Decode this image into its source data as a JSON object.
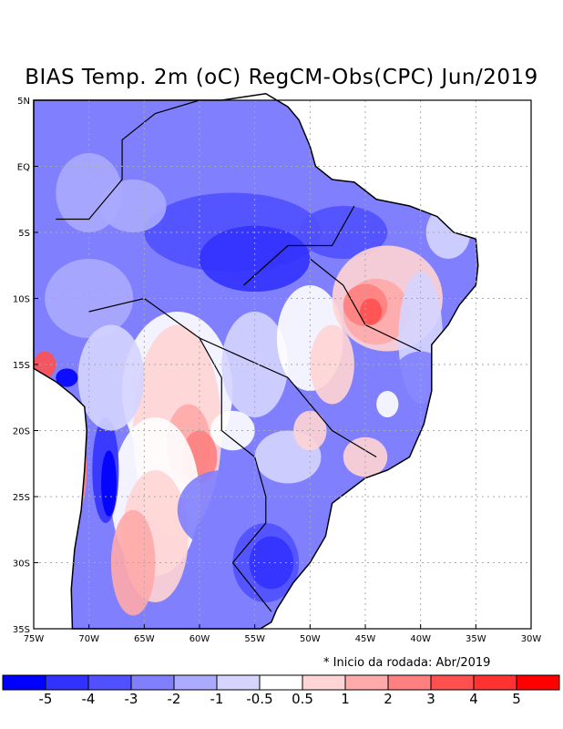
{
  "title": "BIAS Temp. 2m (oC) RegCM-Obs(CPC) Jun/2019",
  "lat_labels": [
    "5N",
    "EQ",
    "5S",
    "10S",
    "15S",
    "20S",
    "25S",
    "30S",
    "35S"
  ],
  "lon_labels": [
    "75W",
    "70W",
    "65W",
    "60W",
    "55W",
    "50W",
    "45W",
    "40W",
    "35W",
    "30W"
  ],
  "note": "* Inicio da rodada: Abr/2019",
  "colorbar": {
    "colors": [
      "#0000ff",
      "#3232ff",
      "#5050ff",
      "#8080ff",
      "#aaaaff",
      "#d4d4ff",
      "#ffffff",
      "#ffd4d4",
      "#ffaaaa",
      "#ff8080",
      "#ff5050",
      "#ff3232",
      "#ff0000"
    ],
    "labels": [
      "-5",
      "-4",
      "-3",
      "-2",
      "-1",
      "-0.5",
      "0.5",
      "1",
      "2",
      "3",
      "4",
      "5"
    ]
  }
}
